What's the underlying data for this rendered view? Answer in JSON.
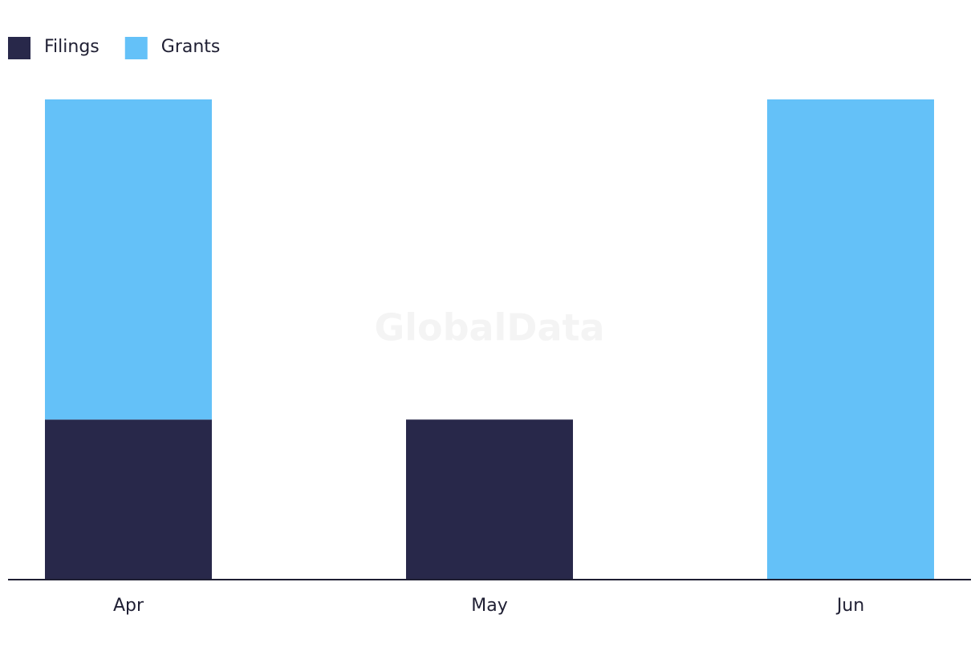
{
  "chart_data": {
    "type": "stacked-bar",
    "watermark": "GlobalData",
    "categories": [
      "Apr",
      "May",
      "Jun"
    ],
    "series": [
      {
        "name": "Filings",
        "color": "#28284a",
        "values": [
          1,
          1,
          0
        ]
      },
      {
        "name": "Grants",
        "color": "#64c1f8",
        "values": [
          2,
          0,
          3
        ]
      }
    ],
    "ylim": [
      0,
      3
    ],
    "legend": "top-left"
  }
}
